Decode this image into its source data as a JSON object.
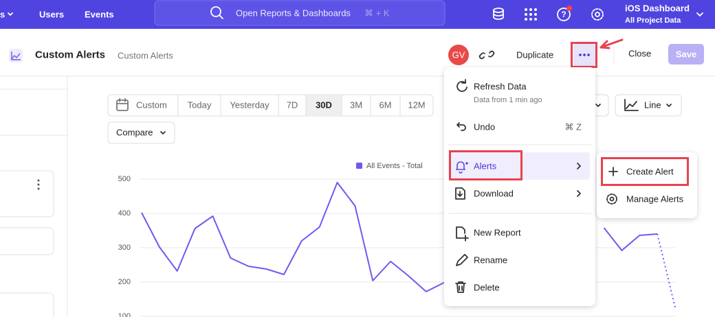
{
  "nav": {
    "items": [
      "s",
      "Users",
      "Events"
    ],
    "search_placeholder": "Open Reports & Dashboards",
    "search_shortcut": "⌘ + K",
    "project_title": "iOS Dashboard",
    "project_subtitle": "All Project Data"
  },
  "toolbar": {
    "title": "Custom Alerts",
    "breadcrumb": "Custom Alerts",
    "avatar": "GV",
    "duplicate": "Duplicate",
    "close": "Close",
    "save": "Save"
  },
  "controls": {
    "date_ranges": [
      "Custom",
      "Today",
      "Yesterday",
      "7D",
      "30D",
      "3M",
      "6M",
      "12M"
    ],
    "compare": "Compare",
    "chart_type": "Line"
  },
  "chart_data": {
    "type": "line",
    "series": [
      {
        "name": "All Events - Total",
        "color": "#7356f2",
        "values": [
          402,
          302,
          232,
          356,
          392,
          270,
          246,
          238,
          222,
          320,
          360,
          490,
          422,
          204,
          260,
          218,
          172,
          198,
          null,
          null,
          null,
          null,
          null,
          null,
          null,
          null,
          358,
          292,
          336,
          340,
          126
        ]
      }
    ],
    "ylim": [
      100,
      500
    ],
    "yticks": [
      100,
      200,
      300,
      400,
      500
    ],
    "grid": true,
    "dotted_last_segment": true
  },
  "menu": {
    "items": [
      {
        "label": "Refresh Data",
        "sublabel": "Data from 1 min ago"
      },
      {
        "label": "Undo",
        "shortcut": "⌘ Z"
      },
      {
        "label": "Alerts"
      },
      {
        "label": "Download"
      },
      {
        "label": "New Report"
      },
      {
        "label": "Rename"
      },
      {
        "label": "Delete"
      }
    ]
  },
  "submenu": {
    "items": [
      {
        "label": "Create Alert"
      },
      {
        "label": "Manage Alerts"
      }
    ]
  }
}
